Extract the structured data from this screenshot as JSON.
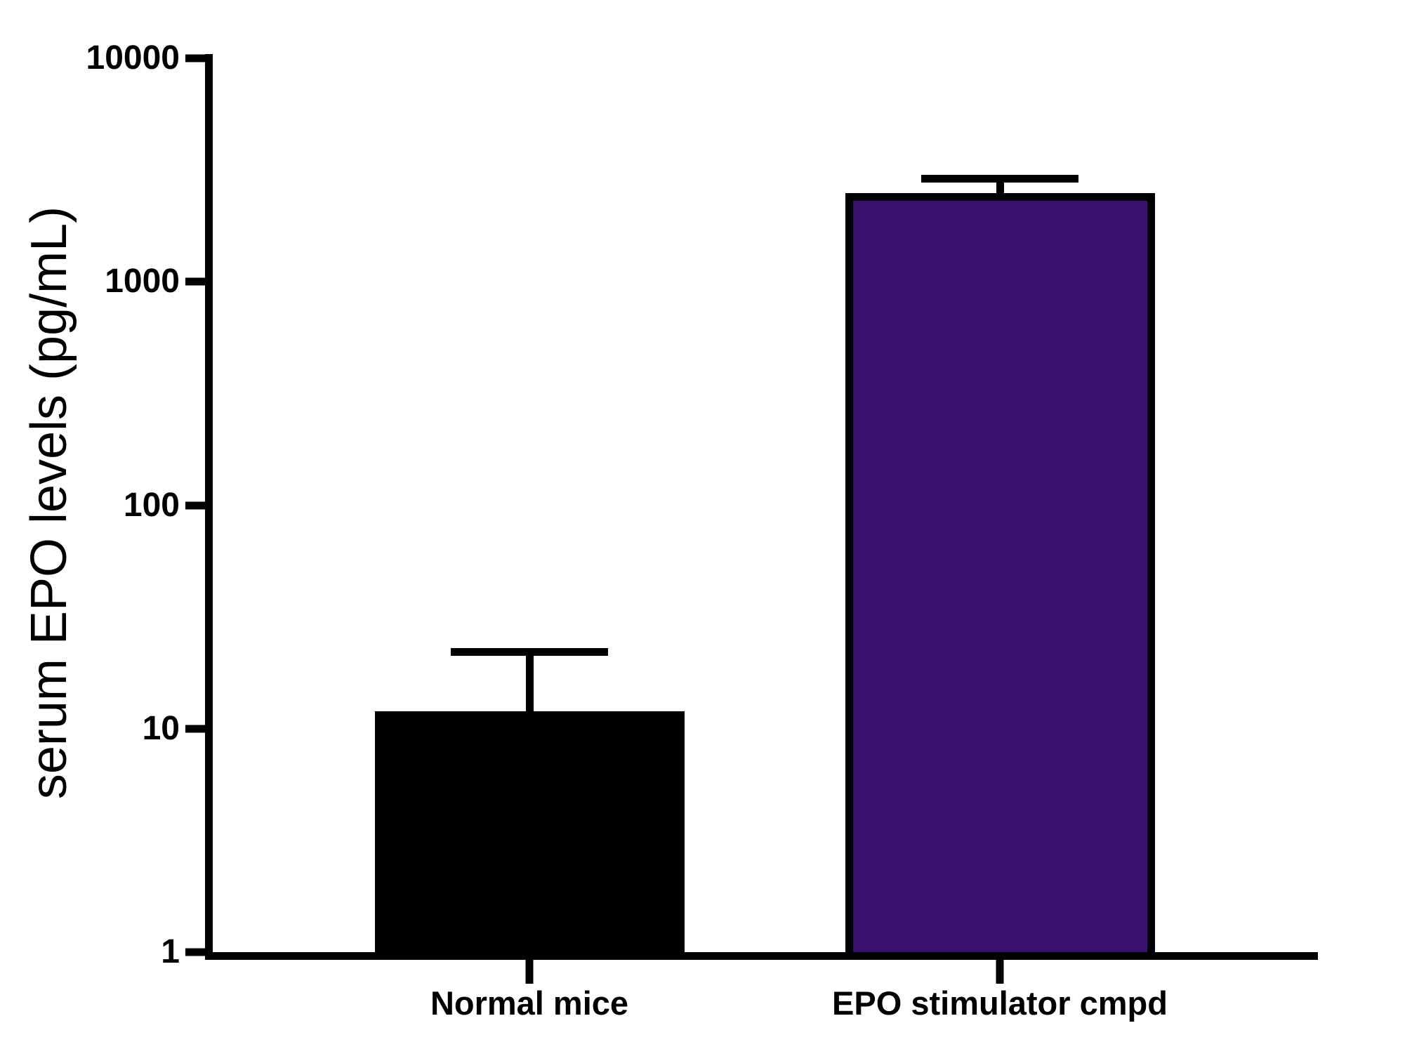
{
  "chart_data": {
    "type": "bar",
    "title": "",
    "xlabel": "",
    "ylabel": "serum EPO levels (pg/mL)",
    "yscale": "log",
    "ylim": [
      1,
      10000
    ],
    "yticks": [
      1,
      10,
      100,
      1000,
      10000
    ],
    "ytick_labels": [
      "1",
      "10",
      "100",
      "1000",
      "10000"
    ],
    "grid": false,
    "legend": false,
    "categories": [
      "Normal mice",
      "EPO stimulator cmpd"
    ],
    "series": [
      {
        "name": "serum EPO levels",
        "values": [
          12,
          2500
        ],
        "error_upper": [
          22,
          2900
        ]
      }
    ],
    "bar_colors": [
      "#000000",
      "#3A1170"
    ],
    "bar_border_color": "#000000",
    "axis_color": "#000000",
    "background_color": "#ffffff"
  }
}
